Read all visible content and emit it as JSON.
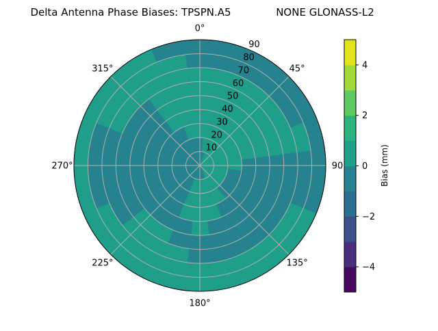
{
  "chart_data": {
    "type": "heatmap",
    "subtype": "polar-contourf",
    "title_left": "Delta Antenna Phase Biases: TPSPN.A5",
    "title_right": "NONE GLONASS-L2",
    "theta_zero": "top",
    "theta_direction": "clockwise",
    "theta_ticks": [
      "0°",
      "45°",
      "90",
      "135°",
      "180°",
      "225°",
      "270°",
      "315°"
    ],
    "theta_tick_values": [
      0,
      45,
      90,
      135,
      180,
      225,
      270,
      315
    ],
    "r_ticks": [
      "10",
      "20",
      "30",
      "40",
      "50",
      "60",
      "70",
      "80",
      "90"
    ],
    "r_tick_values": [
      10,
      20,
      30,
      40,
      50,
      60,
      70,
      80,
      90
    ],
    "rlim": [
      0,
      90
    ],
    "grid": true,
    "azimuths": [
      0,
      15,
      30,
      45,
      60,
      75,
      90,
      105,
      120,
      135,
      150,
      165,
      180,
      195,
      210,
      225,
      240,
      255,
      270,
      285,
      300,
      315,
      330,
      345
    ],
    "r_bin_edges": [
      0,
      10,
      20,
      30,
      40,
      50,
      60,
      70,
      80,
      90
    ],
    "values": [
      [
        -0.5,
        -0.5,
        0.5,
        0.5,
        0.5,
        0.5,
        0.5,
        -0.5,
        -0.5
      ],
      [
        -0.5,
        0.5,
        0.5,
        0.5,
        0.5,
        0.5,
        0.5,
        -0.5,
        -0.5
      ],
      [
        0.5,
        0.5,
        0.5,
        0.5,
        0.5,
        0.5,
        0.5,
        -0.5,
        -0.5
      ],
      [
        0.5,
        0.5,
        0.5,
        0.5,
        0.5,
        0.5,
        0.5,
        -0.5,
        -0.5
      ],
      [
        0.5,
        0.5,
        0.5,
        0.5,
        0.5,
        0.5,
        0.5,
        -0.5,
        -0.5
      ],
      [
        0.5,
        0.5,
        0.5,
        0.5,
        0.5,
        0.5,
        0.5,
        0.5,
        -0.5
      ],
      [
        0.5,
        0.5,
        0.5,
        -0.5,
        -0.5,
        -0.5,
        -0.5,
        -0.5,
        -0.5
      ],
      [
        0.5,
        0.5,
        -0.5,
        -0.5,
        -0.5,
        -0.5,
        -0.5,
        -0.5,
        -0.5
      ],
      [
        0.5,
        0.5,
        -0.5,
        -0.5,
        -0.5,
        -0.5,
        -0.5,
        0.5,
        0.5
      ],
      [
        0.5,
        0.5,
        -0.5,
        -0.5,
        -0.5,
        -0.5,
        -0.5,
        0.5,
        0.5
      ],
      [
        0.5,
        0.5,
        0.5,
        -0.5,
        -0.5,
        -0.5,
        -0.5,
        0.5,
        0.5
      ],
      [
        -0.5,
        0.5,
        0.5,
        0.5,
        -0.5,
        -0.5,
        -0.5,
        0.5,
        0.5
      ],
      [
        -0.5,
        0.5,
        0.5,
        0.5,
        0.5,
        -0.5,
        -0.5,
        0.5,
        0.5
      ],
      [
        -0.5,
        0.5,
        0.5,
        0.5,
        -0.5,
        -0.5,
        0.5,
        0.5,
        0.5
      ],
      [
        -0.5,
        -0.5,
        -0.5,
        -0.5,
        -0.5,
        0.5,
        0.5,
        0.5,
        0.5
      ],
      [
        -0.5,
        -0.5,
        -0.5,
        -0.5,
        -0.5,
        0.5,
        0.5,
        0.5,
        0.5
      ],
      [
        -0.5,
        -0.5,
        -0.5,
        -0.5,
        -0.5,
        -0.5,
        -0.5,
        0.5,
        0.5
      ],
      [
        -0.5,
        -0.5,
        -0.5,
        -0.5,
        -0.5,
        -0.5,
        -0.5,
        -0.5,
        0.5
      ],
      [
        -0.5,
        -0.5,
        -0.5,
        -0.5,
        -0.5,
        -0.5,
        -0.5,
        -0.5,
        0.5
      ],
      [
        -0.5,
        -0.5,
        -0.5,
        -0.5,
        -0.5,
        -0.5,
        -0.5,
        -0.5,
        0.5
      ],
      [
        -0.5,
        -0.5,
        -0.5,
        -0.5,
        -0.5,
        -0.5,
        0.5,
        0.5,
        0.5
      ],
      [
        -0.5,
        -0.5,
        -0.5,
        -0.5,
        -0.5,
        -0.5,
        0.5,
        0.5,
        0.5
      ],
      [
        -0.5,
        -0.5,
        -0.5,
        0.5,
        0.5,
        0.5,
        0.5,
        0.5,
        0.5
      ],
      [
        -0.5,
        -0.5,
        0.5,
        0.5,
        0.5,
        0.5,
        0.5,
        0.5,
        -0.5
      ]
    ],
    "colorbar": {
      "label": "Bias (mm)",
      "levels": [
        -5,
        -4,
        -3,
        -2,
        -1,
        0,
        1,
        2,
        3,
        4,
        5
      ],
      "colors": [
        "#46085c",
        "#472f7d",
        "#3b518b",
        "#2c6f8e",
        "#26828e",
        "#1f9e89",
        "#2db27d",
        "#5ec962",
        "#a0da39",
        "#e0e31d"
      ],
      "ticks": [
        "−4",
        "−2",
        "0",
        "2",
        "4"
      ],
      "tick_values": [
        -4,
        -2,
        0,
        2,
        4
      ],
      "lim": [
        -5,
        5
      ]
    }
  }
}
